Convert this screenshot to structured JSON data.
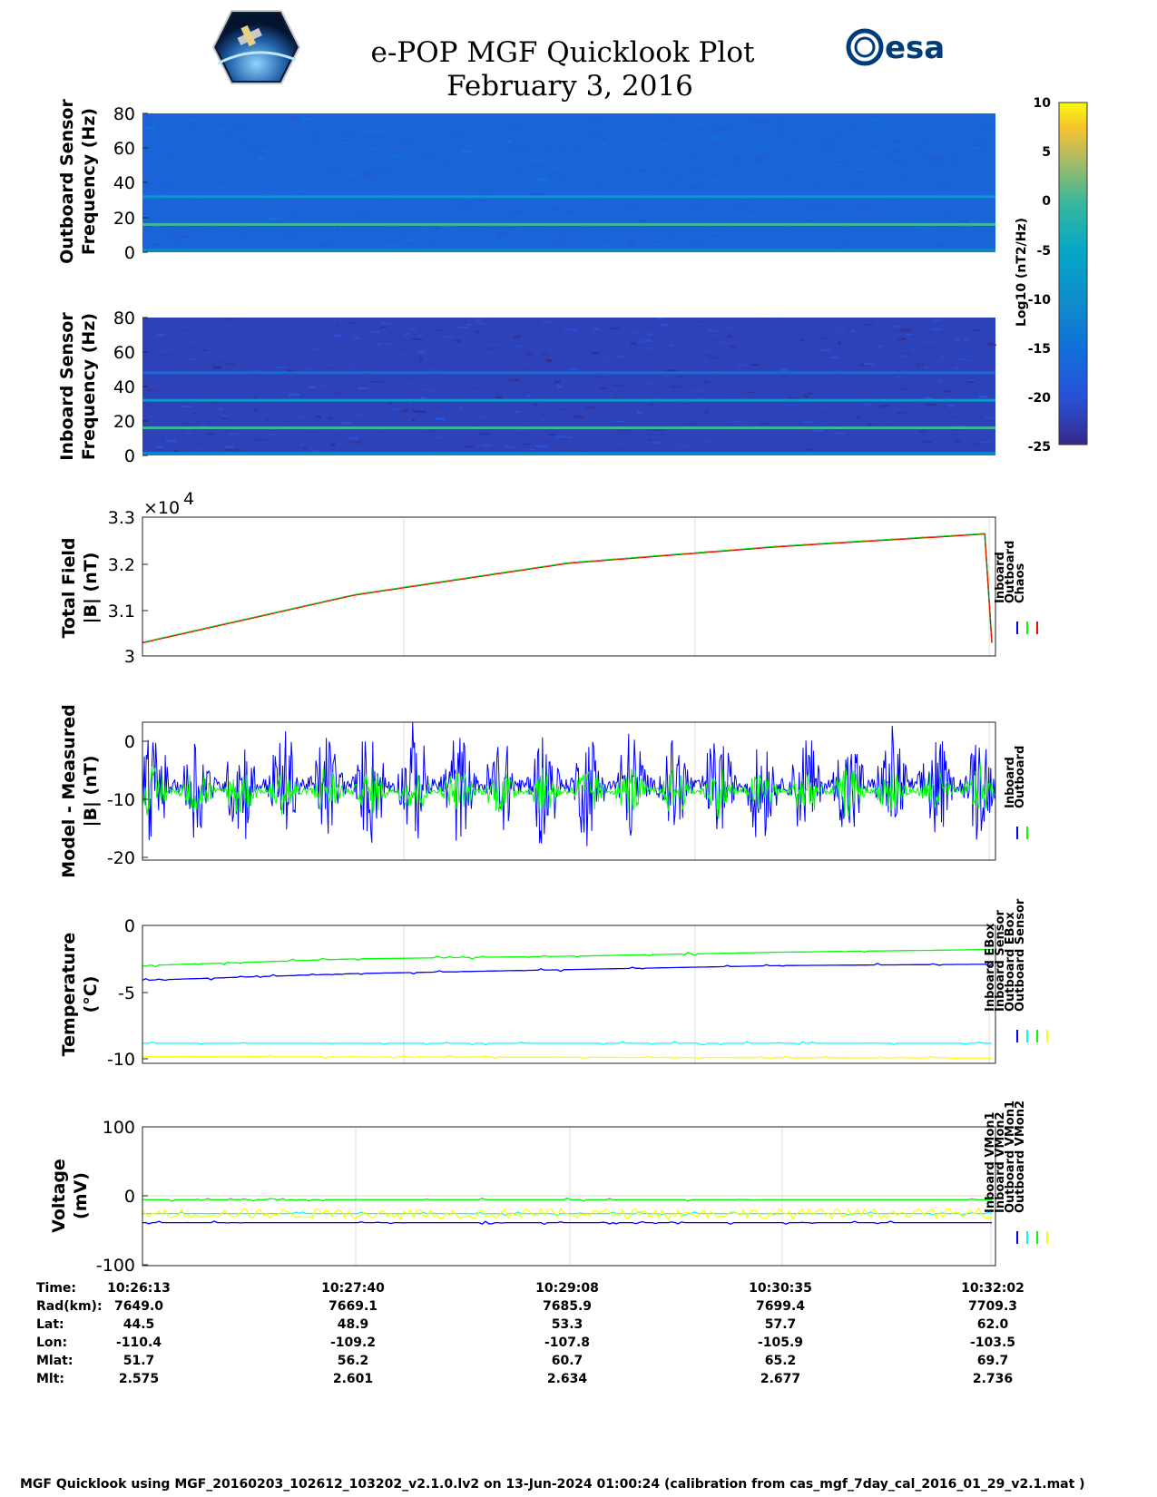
{
  "header": {
    "title_line1": "e-POP MGF Quicklook Plot",
    "title_line2": "February 3, 2016",
    "left_logo": "cassiope-mission-logo",
    "right_logo_text": "esa"
  },
  "colors": {
    "inboard": "#0000ff",
    "outboard": "#00ff00",
    "chaos": "#ff0000",
    "cyan": "#00ffff",
    "yellow": "#ffff00"
  },
  "colorbar": {
    "ticks": [
      "10",
      "5",
      "0",
      "-5",
      "-10",
      "-15",
      "-20",
      "-25"
    ],
    "label": "Log10 (nT2/Hz)",
    "range": [
      -25,
      10
    ],
    "colormap": "parula"
  },
  "chart_data": [
    {
      "type": "heatmap",
      "ylabel": [
        "Outboard Sensor",
        "Frequency (Hz)"
      ],
      "yticks": [
        "80",
        "60",
        "40",
        "20",
        "0"
      ],
      "ylim": [
        0,
        80
      ],
      "background_level": -17,
      "lines": [
        {
          "freq_hz": 16,
          "level": 0
        },
        {
          "freq_hz": 32,
          "level": -8
        }
      ]
    },
    {
      "type": "heatmap",
      "ylabel": [
        "Inboard Sensor",
        "Frequency (Hz)"
      ],
      "yticks": [
        "80",
        "60",
        "40",
        "20",
        "0"
      ],
      "ylim": [
        0,
        80
      ],
      "background_level": -22,
      "lines": [
        {
          "freq_hz": 16,
          "level": 0
        },
        {
          "freq_hz": 32,
          "level": -8
        },
        {
          "freq_hz": 48,
          "level": -16
        }
      ]
    },
    {
      "type": "line",
      "ylabel": [
        "Total Field",
        "|B| (nT)"
      ],
      "yticks": [
        "3.3",
        "3.2",
        "3.1",
        "3"
      ],
      "ylim": [
        3.0,
        3.3
      ],
      "exponent": "×10",
      "exponent_power": "4",
      "legend": [
        "Inboard",
        "Outboard",
        "Chaos"
      ],
      "series": [
        {
          "name": "Inboard",
          "color": "#0000ff",
          "x_minutes": [
            0,
            1.45,
            2.92,
            4.37,
            5.82
          ],
          "values": [
            3.029,
            3.132,
            3.201,
            3.237,
            3.265
          ]
        },
        {
          "name": "Outboard",
          "color": "#00ff00",
          "x_minutes": [
            0,
            1.45,
            2.92,
            4.37,
            5.82
          ],
          "values": [
            3.029,
            3.132,
            3.201,
            3.237,
            3.265
          ]
        },
        {
          "name": "Chaos",
          "color": "#ff0000",
          "x_minutes": [
            0,
            1.45,
            2.92,
            4.37,
            5.82
          ],
          "values": [
            3.028,
            3.131,
            3.2,
            3.236,
            3.264
          ]
        }
      ]
    },
    {
      "type": "line",
      "ylabel": [
        "Model - Measured",
        "|B| (nT)"
      ],
      "yticks": [
        "0",
        "-10",
        "-20"
      ],
      "ylim": [
        -20.5,
        2.5
      ],
      "legend": [
        "Inboard",
        "Outboard"
      ],
      "series": [
        {
          "name": "Inboard",
          "color": "#0000ff",
          "mean": -8,
          "range": [
            -20,
            3
          ]
        },
        {
          "name": "Outboard",
          "color": "#00ff00",
          "mean": -9,
          "range": [
            -14,
            -4
          ]
        }
      ]
    },
    {
      "type": "line",
      "ylabel": [
        "Temperature",
        "(°C)"
      ],
      "yticks": [
        "0",
        "-5",
        "-10"
      ],
      "ylim": [
        -10.3,
        0
      ],
      "legend": [
        "Inboard EBox",
        "Inboard Sensor",
        "Outboard EBox",
        "Outboard Sensor"
      ],
      "series": [
        {
          "name": "Inboard EBox",
          "color": "#0000ff",
          "x_minutes": [
            0,
            1.45,
            2.92,
            4.37,
            5.82
          ],
          "values": [
            -4.1,
            -3.6,
            -3.3,
            -3.0,
            -2.9
          ]
        },
        {
          "name": "Inboard Sensor",
          "color": "#00ffff",
          "x_minutes": [
            0,
            5.82
          ],
          "values": [
            -8.8,
            -8.8
          ]
        },
        {
          "name": "Outboard EBox",
          "color": "#00ff00",
          "x_minutes": [
            0,
            1.45,
            2.92,
            4.37,
            5.82
          ],
          "values": [
            -3.0,
            -2.5,
            -2.3,
            -2.0,
            -1.8
          ]
        },
        {
          "name": "Outboard Sensor",
          "color": "#ffff00",
          "x_minutes": [
            0,
            5.82
          ],
          "values": [
            -9.8,
            -9.9
          ]
        }
      ]
    },
    {
      "type": "line",
      "ylabel": [
        "Voltage",
        "(mV)"
      ],
      "yticks": [
        "100",
        "0",
        "-100"
      ],
      "ylim": [
        -100,
        100
      ],
      "legend": [
        "Inboard VMon1",
        "Inboard VMon2",
        "Outboard VMon1",
        "Outboard VMon2"
      ],
      "series": [
        {
          "name": "Inboard VMon1",
          "color": "#0000ff",
          "x_minutes": [
            0,
            5.82
          ],
          "values": [
            -38,
            -38
          ]
        },
        {
          "name": "Inboard VMon2",
          "color": "#00ffff",
          "x_minutes": [
            0,
            5.82
          ],
          "values": [
            -25,
            -25
          ]
        },
        {
          "name": "Outboard VMon1",
          "color": "#00ff00",
          "x_minutes": [
            0,
            5.82
          ],
          "values": [
            -5,
            -5
          ]
        },
        {
          "name": "Outboard VMon2",
          "color": "#ffff00",
          "x_minutes": [
            0,
            5.82
          ],
          "values": [
            -25,
            -25
          ]
        }
      ]
    }
  ],
  "info_table": {
    "row_labels": [
      "Time:",
      "Rad(km):",
      "Lat:",
      "Lon:",
      "Mlat:",
      "Mlt:"
    ],
    "columns": [
      [
        "10:26:13",
        "7649.0",
        "44.5",
        "-110.4",
        "51.7",
        "2.575"
      ],
      [
        "10:27:40",
        "7669.1",
        "48.9",
        "-109.2",
        "56.2",
        "2.601"
      ],
      [
        "10:29:08",
        "7685.9",
        "53.3",
        "-107.8",
        "60.7",
        "2.634"
      ],
      [
        "10:30:35",
        "7699.4",
        "57.7",
        "-105.9",
        "65.2",
        "2.677"
      ],
      [
        "10:32:02",
        "7709.3",
        "62.0",
        "-103.5",
        "69.7",
        "2.736"
      ]
    ]
  },
  "footer": "MGF Quicklook using MGF_20160203_102612_103202_v2.1.0.lv2 on 13-Jun-2024 01:00:24 (calibration from cas_mgf_7day_cal_2016_01_29_v2.1.mat )"
}
